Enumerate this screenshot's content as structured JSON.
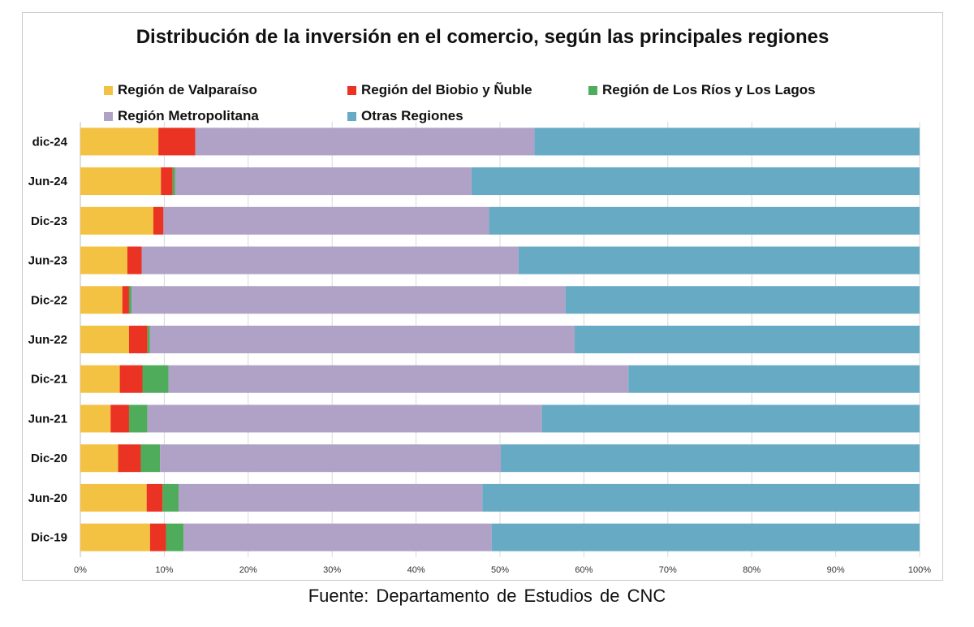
{
  "chart_data": {
    "type": "bar",
    "orientation": "horizontal",
    "stacked": "percent",
    "title": "Distribución de la inversión en el comercio, según las principales regiones",
    "categories": [
      "dic-24",
      "Jun-24",
      "Dic-23",
      "Jun-23",
      "Dic-22",
      "Jun-22",
      "Dic-21",
      "Jun-21",
      "Dic-20",
      "Jun-20",
      "Dic-19"
    ],
    "series": [
      {
        "name": "Región de Valparaíso",
        "color": "#F4C242",
        "values": [
          9.3,
          9.6,
          8.7,
          5.6,
          5.0,
          5.8,
          4.7,
          3.6,
          4.5,
          7.9,
          8.3
        ]
      },
      {
        "name": "Región del Biobio y Ñuble",
        "color": "#EA3323",
        "values": [
          4.4,
          1.4,
          1.2,
          1.7,
          0.8,
          2.2,
          2.7,
          2.2,
          2.7,
          1.9,
          1.9
        ]
      },
      {
        "name": "Región de Los Ríos y Los Lagos",
        "color": "#4EAC5B",
        "values": [
          0.0,
          0.3,
          0.0,
          0.0,
          0.3,
          0.3,
          3.1,
          2.2,
          2.3,
          1.9,
          2.1
        ]
      },
      {
        "name": "Región Metropolitana",
        "color": "#B0A1C6",
        "values": [
          40.4,
          35.3,
          38.8,
          44.9,
          51.7,
          50.6,
          54.8,
          47.0,
          40.6,
          36.2,
          36.7
        ]
      },
      {
        "name": "Otras Regiones",
        "color": "#66AAC4",
        "values": [
          45.9,
          53.4,
          51.3,
          47.8,
          42.2,
          41.1,
          34.7,
          45.0,
          49.9,
          52.1,
          51.0
        ]
      }
    ],
    "xlim": [
      0,
      100
    ],
    "x_ticks": [
      "0%",
      "10%",
      "20%",
      "30%",
      "40%",
      "50%",
      "60%",
      "70%",
      "80%",
      "90%",
      "100%"
    ],
    "grid": true,
    "legend_position": "top"
  },
  "source_note": "Fuente:  Departamento  de Estudios  de CNC"
}
